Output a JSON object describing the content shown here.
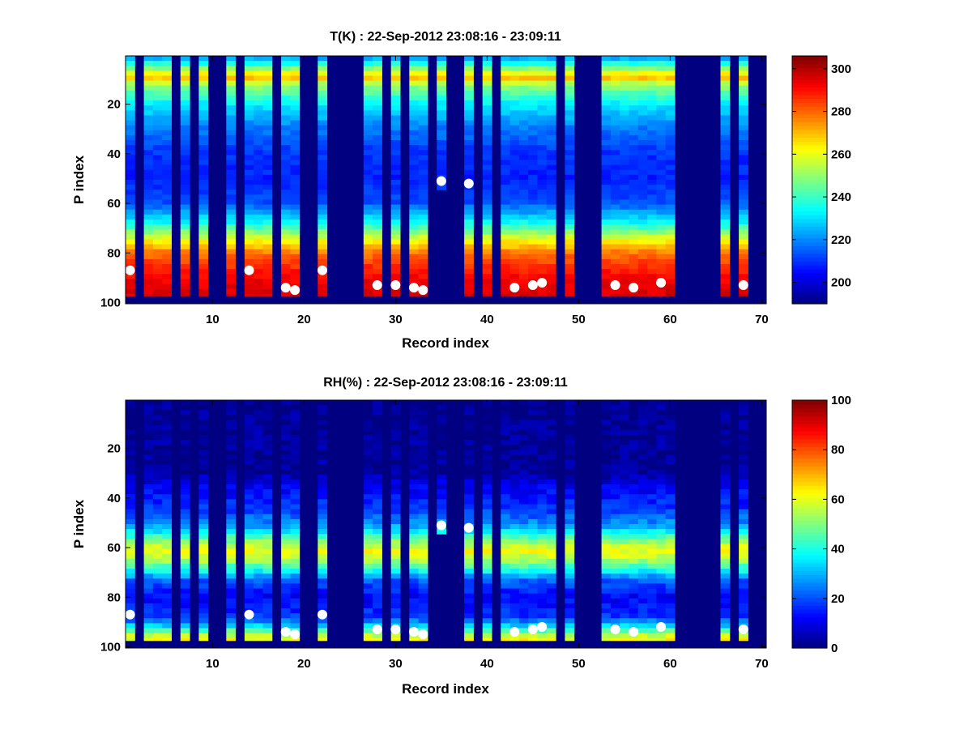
{
  "chart_data": [
    {
      "type": "heatmap",
      "title": "T(K) : 22-Sep-2012 23:08:16 - 23:09:11",
      "xlabel": "Record index",
      "ylabel": "P index",
      "xlim": [
        0.5,
        70.5
      ],
      "ylim": [
        100.5,
        0.5
      ],
      "x_reversed": false,
      "y_reversed": true,
      "xticks": [
        10,
        20,
        30,
        40,
        50,
        60,
        70
      ],
      "yticks": [
        20,
        40,
        60,
        80,
        100
      ],
      "colormap": "jet",
      "fill_value": 190,
      "colorbar": {
        "min": 190,
        "max": 306,
        "ticks": [
          200,
          220,
          240,
          260,
          280,
          300
        ]
      },
      "records_with_data": [
        1,
        3,
        4,
        5,
        7,
        9,
        12,
        14,
        15,
        16,
        18,
        19,
        22,
        27,
        28,
        30,
        32,
        33,
        35,
        38,
        40,
        42,
        43,
        44,
        45,
        46,
        47,
        49,
        53,
        54,
        55,
        56,
        57,
        58,
        59,
        60,
        66,
        68
      ],
      "profile_bottom_p": 97,
      "profile_bottom_exceptions": {
        "35": 54
      },
      "profile_model": {
        "p": [
          1,
          5,
          9,
          12,
          20,
          30,
          40,
          50,
          60,
          68,
          75,
          80,
          85,
          90,
          97
        ],
        "t": [
          222,
          245,
          272,
          252,
          232,
          218,
          210,
          208,
          214,
          235,
          262,
          278,
          286,
          292,
          296
        ]
      },
      "surface_points": [
        {
          "record": 1,
          "p": 87
        },
        {
          "record": 14,
          "p": 87
        },
        {
          "record": 18,
          "p": 94
        },
        {
          "record": 19,
          "p": 95
        },
        {
          "record": 22,
          "p": 87
        },
        {
          "record": 28,
          "p": 93
        },
        {
          "record": 30,
          "p": 93
        },
        {
          "record": 32,
          "p": 94
        },
        {
          "record": 33,
          "p": 95
        },
        {
          "record": 35,
          "p": 51
        },
        {
          "record": 38,
          "p": 52
        },
        {
          "record": 43,
          "p": 94
        },
        {
          "record": 45,
          "p": 93
        },
        {
          "record": 46,
          "p": 92
        },
        {
          "record": 54,
          "p": 93
        },
        {
          "record": 56,
          "p": 94
        },
        {
          "record": 59,
          "p": 92
        },
        {
          "record": 68,
          "p": 93
        }
      ]
    },
    {
      "type": "heatmap",
      "title": "RH(%) : 22-Sep-2012 23:08:16 - 23:09:11",
      "xlabel": "Record index",
      "ylabel": "P index",
      "xlim": [
        0.5,
        70.5
      ],
      "ylim": [
        100.5,
        0.5
      ],
      "x_reversed": false,
      "y_reversed": true,
      "xticks": [
        10,
        20,
        30,
        40,
        50,
        60,
        70
      ],
      "yticks": [
        20,
        40,
        60,
        80,
        100
      ],
      "colormap": "jet",
      "fill_value": 0,
      "colorbar": {
        "min": 0,
        "max": 100,
        "ticks": [
          0,
          20,
          40,
          60,
          80,
          100
        ]
      },
      "records_with_data": [
        1,
        3,
        4,
        5,
        7,
        9,
        12,
        14,
        15,
        16,
        18,
        19,
        22,
        27,
        28,
        30,
        32,
        33,
        35,
        38,
        40,
        42,
        43,
        44,
        45,
        46,
        47,
        49,
        53,
        54,
        55,
        56,
        57,
        58,
        59,
        60,
        66,
        68
      ],
      "profile_bottom_p": 97,
      "profile_bottom_exceptions": {
        "35": 54
      },
      "profile_model": {
        "p": [
          1,
          30,
          36,
          45,
          52,
          57,
          61,
          65,
          69,
          73,
          80,
          88,
          92,
          95,
          97
        ],
        "rh": [
          2,
          3,
          12,
          18,
          30,
          50,
          62,
          55,
          40,
          22,
          12,
          18,
          35,
          55,
          62
        ]
      },
      "surface_points": [
        {
          "record": 1,
          "p": 87
        },
        {
          "record": 14,
          "p": 87
        },
        {
          "record": 18,
          "p": 94
        },
        {
          "record": 19,
          "p": 95
        },
        {
          "record": 22,
          "p": 87
        },
        {
          "record": 28,
          "p": 93
        },
        {
          "record": 30,
          "p": 93
        },
        {
          "record": 32,
          "p": 94
        },
        {
          "record": 33,
          "p": 95
        },
        {
          "record": 35,
          "p": 51
        },
        {
          "record": 38,
          "p": 52
        },
        {
          "record": 43,
          "p": 94
        },
        {
          "record": 45,
          "p": 93
        },
        {
          "record": 46,
          "p": 92
        },
        {
          "record": 54,
          "p": 93
        },
        {
          "record": 56,
          "p": 94
        },
        {
          "record": 59,
          "p": 92
        },
        {
          "record": 68,
          "p": 93
        }
      ]
    }
  ]
}
